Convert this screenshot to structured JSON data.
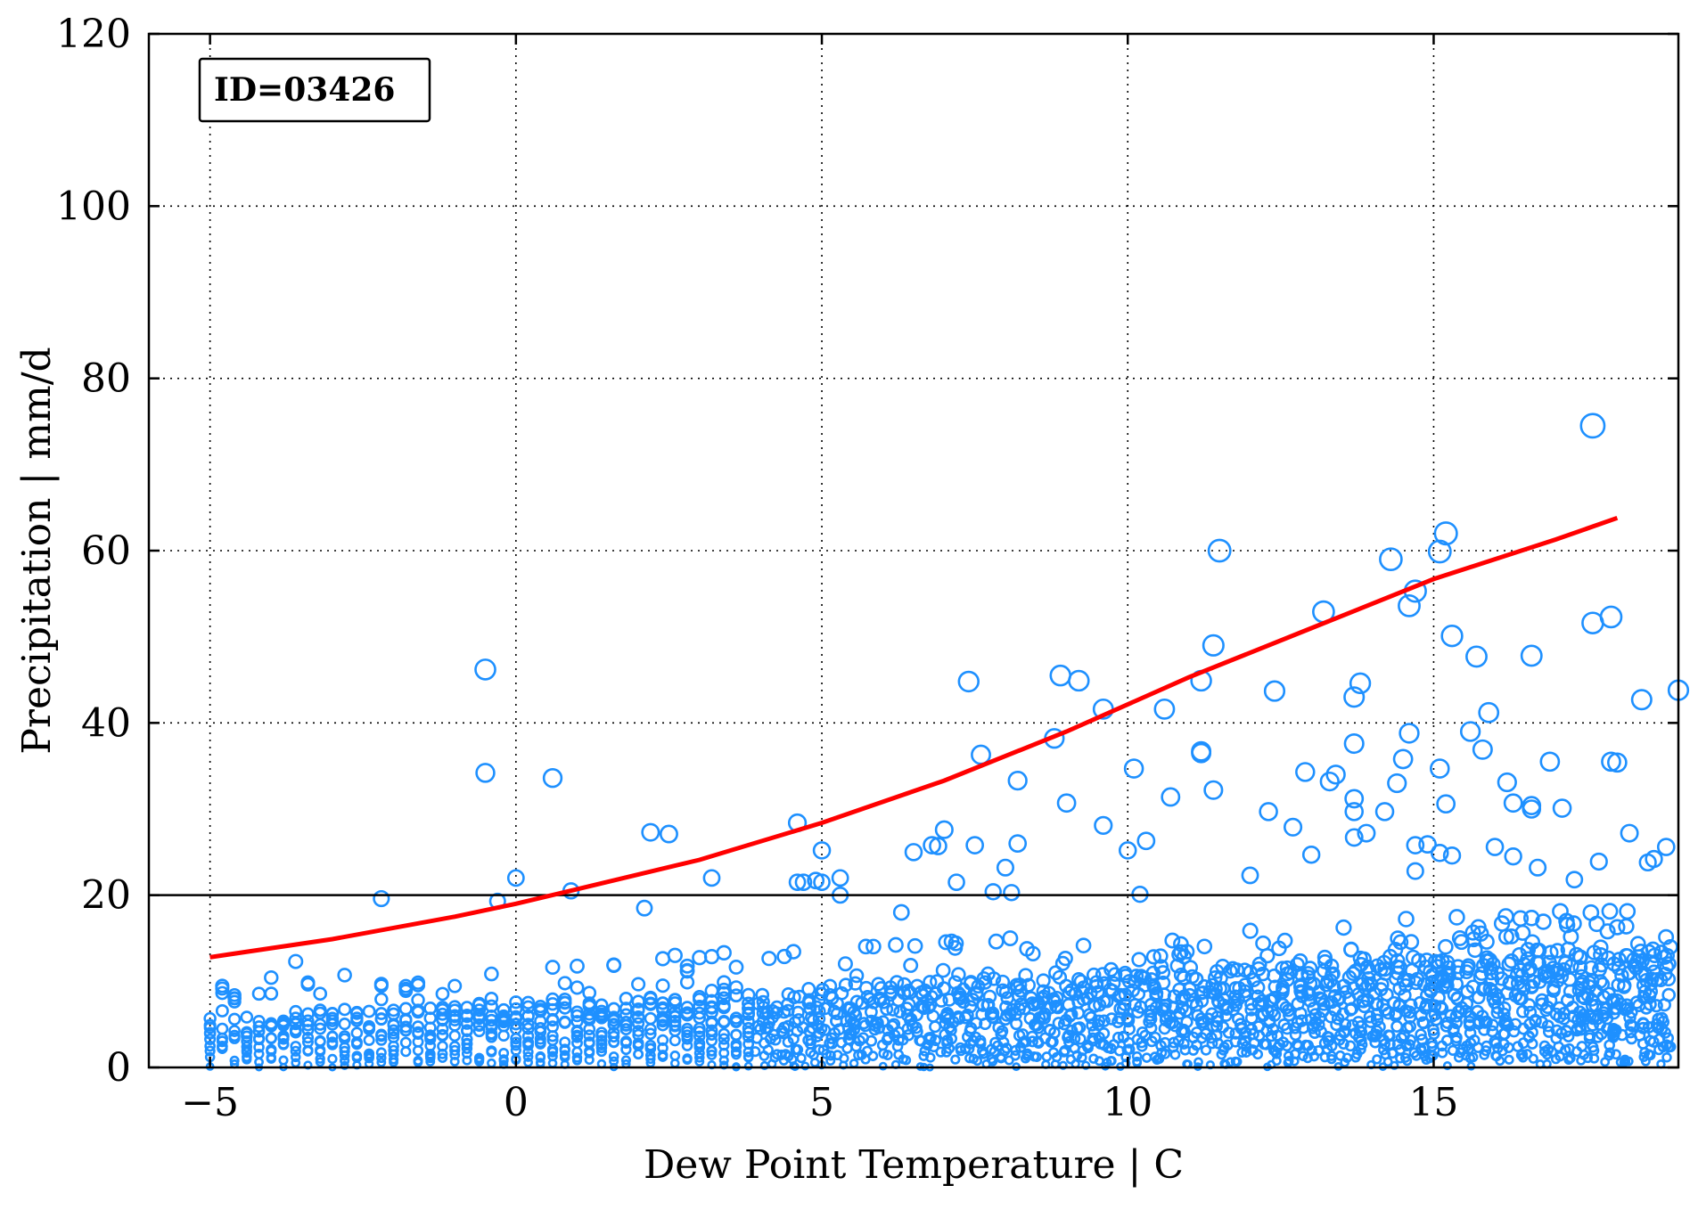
{
  "chart_data": {
    "type": "scatter",
    "title": "",
    "annotation": "ID=03426",
    "xlabel": "Dew Point Temperature | C",
    "ylabel": "Precipitation | mm/d",
    "xlim": [
      -6,
      19
    ],
    "ylim": [
      0,
      120
    ],
    "xticks": [
      -5,
      0,
      5,
      10,
      15
    ],
    "yticks": [
      0,
      20,
      40,
      60,
      80,
      100,
      120
    ],
    "xtick_labels": [
      "−5",
      "0",
      "5",
      "10",
      "15"
    ],
    "ytick_labels": [
      "0",
      "20",
      "40",
      "60",
      "80",
      "100",
      "120"
    ],
    "grid": true,
    "reference_line": {
      "y": 20,
      "color": "#000000"
    },
    "fit_curve": {
      "color": "#ff0000",
      "x": [
        -5,
        -3,
        -1,
        0,
        1,
        3,
        5,
        7,
        9,
        11,
        13,
        15,
        17,
        18
      ],
      "y": [
        12.8,
        14.9,
        17.5,
        19.0,
        20.7,
        24.1,
        28.4,
        33.3,
        39.0,
        45.3,
        51.0,
        56.7,
        61.3,
        63.8
      ]
    },
    "series": [
      {
        "marker_color": "#1e90ff",
        "marker": "open-circle-sized-by-value",
        "points": [
          [
            -0.5,
            46.2
          ],
          [
            -0.5,
            34.2
          ],
          [
            0.6,
            33.6
          ],
          [
            0.0,
            22.0
          ],
          [
            -0.3,
            19.3
          ],
          [
            0.9,
            20.5
          ],
          [
            -2.2,
            19.6
          ],
          [
            -3.6,
            12.3
          ],
          [
            2.2,
            27.3
          ],
          [
            2.5,
            27.1
          ],
          [
            2.1,
            18.5
          ],
          [
            3.2,
            22.0
          ],
          [
            4.6,
            28.4
          ],
          [
            4.6,
            21.5
          ],
          [
            4.7,
            21.5
          ],
          [
            4.9,
            21.7
          ],
          [
            5.0,
            25.2
          ],
          [
            5.0,
            21.5
          ],
          [
            5.3,
            22.0
          ],
          [
            5.3,
            20.0
          ],
          [
            6.3,
            18.0
          ],
          [
            6.5,
            25.0
          ],
          [
            6.8,
            25.8
          ],
          [
            6.9,
            25.7
          ],
          [
            7.0,
            27.6
          ],
          [
            7.5,
            25.8
          ],
          [
            7.2,
            21.5
          ],
          [
            7.4,
            44.8
          ],
          [
            7.6,
            36.3
          ],
          [
            7.8,
            20.4
          ],
          [
            8.0,
            23.2
          ],
          [
            8.1,
            20.3
          ],
          [
            8.2,
            33.3
          ],
          [
            8.2,
            26.0
          ],
          [
            8.8,
            38.2
          ],
          [
            8.9,
            45.5
          ],
          [
            9.0,
            30.7
          ],
          [
            9.2,
            44.9
          ],
          [
            9.6,
            41.6
          ],
          [
            9.6,
            28.1
          ],
          [
            10.0,
            25.2
          ],
          [
            10.1,
            34.7
          ],
          [
            10.2,
            20.1
          ],
          [
            10.3,
            26.3
          ],
          [
            10.6,
            41.6
          ],
          [
            10.7,
            31.4
          ],
          [
            11.2,
            44.9
          ],
          [
            11.2,
            36.5
          ],
          [
            11.2,
            36.7
          ],
          [
            11.4,
            32.2
          ],
          [
            11.4,
            49.0
          ],
          [
            11.5,
            60.0
          ],
          [
            12.0,
            22.3
          ],
          [
            12.3,
            29.7
          ],
          [
            12.4,
            43.7
          ],
          [
            12.7,
            27.9
          ],
          [
            12.9,
            34.3
          ],
          [
            13.0,
            24.7
          ],
          [
            13.2,
            52.9
          ],
          [
            13.3,
            33.2
          ],
          [
            13.4,
            34.0
          ],
          [
            13.7,
            43.0
          ],
          [
            13.8,
            44.6
          ],
          [
            13.7,
            37.6
          ],
          [
            13.7,
            31.2
          ],
          [
            13.7,
            29.7
          ],
          [
            13.7,
            26.7
          ],
          [
            13.9,
            27.2
          ],
          [
            14.2,
            29.7
          ],
          [
            14.3,
            59.0
          ],
          [
            14.4,
            33.0
          ],
          [
            14.5,
            35.8
          ],
          [
            14.6,
            53.6
          ],
          [
            14.7,
            55.3
          ],
          [
            14.6,
            38.8
          ],
          [
            14.7,
            25.8
          ],
          [
            14.9,
            25.9
          ],
          [
            14.7,
            22.8
          ],
          [
            15.1,
            59.9
          ],
          [
            15.2,
            62.0
          ],
          [
            15.1,
            34.7
          ],
          [
            15.2,
            30.6
          ],
          [
            15.3,
            50.1
          ],
          [
            15.1,
            24.9
          ],
          [
            15.3,
            24.6
          ],
          [
            15.6,
            39.0
          ],
          [
            15.7,
            47.7
          ],
          [
            15.9,
            41.2
          ],
          [
            15.8,
            36.9
          ],
          [
            16.2,
            33.1
          ],
          [
            16.3,
            30.7
          ],
          [
            16.6,
            30.4
          ],
          [
            16.6,
            30.0
          ],
          [
            16.6,
            47.8
          ],
          [
            16.9,
            35.5
          ],
          [
            17.1,
            30.1
          ],
          [
            17.6,
            74.5
          ],
          [
            17.6,
            51.6
          ],
          [
            17.9,
            52.3
          ],
          [
            17.9,
            35.5
          ],
          [
            18.0,
            35.4
          ],
          [
            18.2,
            27.2
          ],
          [
            18.4,
            42.7
          ],
          [
            18.6,
            24.2
          ],
          [
            18.5,
            23.8
          ],
          [
            18.8,
            25.6
          ],
          [
            19.0,
            43.8
          ],
          [
            16.0,
            25.6
          ],
          [
            16.3,
            24.5
          ],
          [
            16.7,
            23.2
          ],
          [
            17.3,
            21.8
          ],
          [
            17.7,
            23.9
          ]
        ]
      }
    ]
  }
}
